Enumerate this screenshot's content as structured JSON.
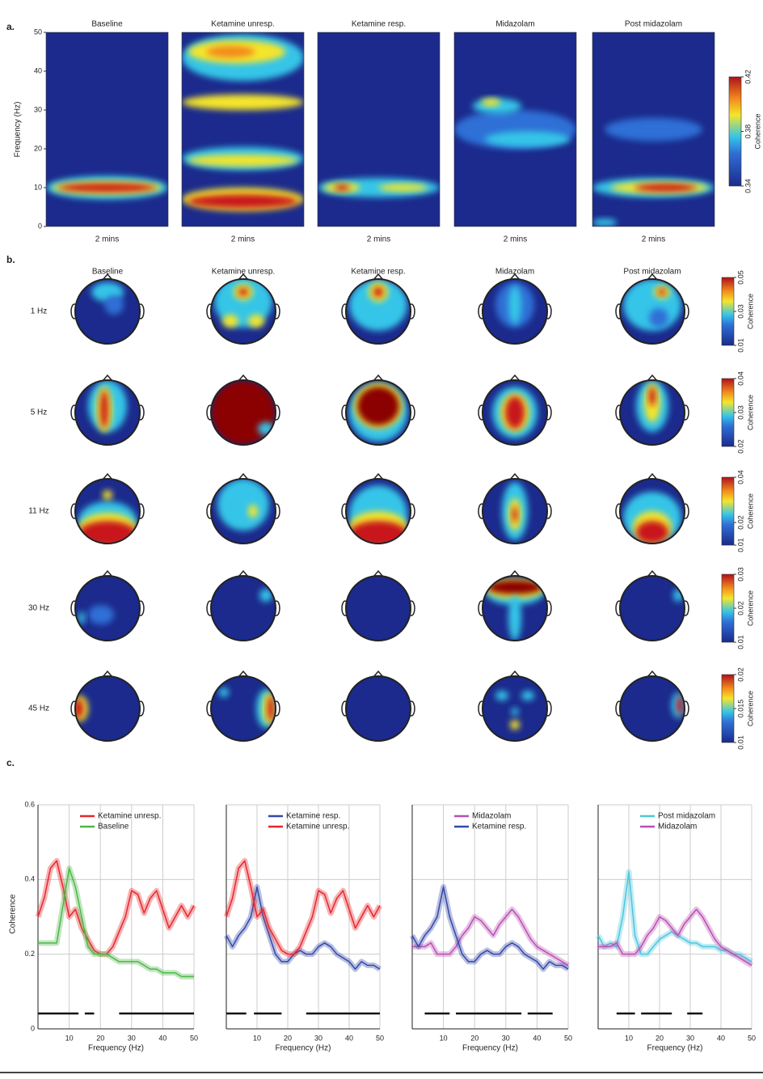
{
  "panel_labels": [
    "a.",
    "b.",
    "c."
  ],
  "spectrograms": {
    "titles": [
      "Baseline",
      "Ketamine unresp.",
      "Ketamine resp.",
      "Midazolam",
      "Post midazolam"
    ],
    "xlabel": "2 mins",
    "ylabel": "Frequency (Hz)",
    "ylim": [
      0,
      50
    ],
    "yticks": [
      0,
      10,
      20,
      30,
      40,
      50
    ],
    "colorbar": {
      "label": "Coherence",
      "lim": [
        0.34,
        0.42
      ],
      "ticks": [
        0.34,
        0.38,
        0.42
      ]
    }
  },
  "topoplots": {
    "titles": [
      "Baseline",
      "Ketamine unresp.",
      "Ketamine resp.",
      "Midazolam",
      "Post midazolam"
    ],
    "rows": [
      {
        "label": "1 Hz",
        "colorbar": {
          "label": "Coherence",
          "lim": [
            0.01,
            0.05
          ],
          "ticks": [
            0.01,
            0.03,
            0.05
          ]
        }
      },
      {
        "label": "5 Hz",
        "colorbar": {
          "label": "Coherence",
          "lim": [
            0.02,
            0.04
          ],
          "ticks": [
            0.02,
            0.03,
            0.04
          ]
        }
      },
      {
        "label": "11 Hz",
        "colorbar": {
          "label": "Coherence",
          "lim": [
            0.01,
            0.04
          ],
          "ticks": [
            0.01,
            0.02,
            0.04
          ]
        }
      },
      {
        "label": "30 Hz",
        "colorbar": {
          "label": "Coherence",
          "lim": [
            0.01,
            0.03
          ],
          "ticks": [
            0.01,
            0.02,
            0.03
          ]
        }
      },
      {
        "label": "45 Hz",
        "colorbar": {
          "label": "Coherence",
          "lim": [
            0.01,
            0.02
          ],
          "ticks": [
            0.01,
            0.015,
            0.02
          ]
        }
      }
    ]
  },
  "chart_data": [
    {
      "type": "line",
      "xlabel": "Frequency (Hz)",
      "ylabel": "Coherence",
      "x": [
        0,
        2,
        4,
        6,
        8,
        10,
        12,
        14,
        16,
        18,
        20,
        22,
        24,
        26,
        28,
        30,
        32,
        34,
        36,
        38,
        40,
        42,
        44,
        46,
        48,
        50
      ],
      "xlim": [
        0,
        50
      ],
      "xticks": [
        10,
        20,
        30,
        40,
        50
      ],
      "ylim": [
        0,
        0.6
      ],
      "yticks": [
        0,
        0.2,
        0.4,
        0.6
      ],
      "show_ytick_labels": true,
      "grid": true,
      "series": [
        {
          "name": "Ketamine unresp.",
          "color": "#e8262b",
          "values": [
            0.3,
            0.35,
            0.43,
            0.45,
            0.38,
            0.3,
            0.32,
            0.27,
            0.24,
            0.21,
            0.2,
            0.2,
            0.22,
            0.26,
            0.3,
            0.37,
            0.36,
            0.31,
            0.35,
            0.37,
            0.32,
            0.27,
            0.3,
            0.33,
            0.3,
            0.33
          ]
        },
        {
          "name": "Baseline",
          "color": "#4db848",
          "values": [
            0.23,
            0.23,
            0.23,
            0.23,
            0.33,
            0.43,
            0.38,
            0.3,
            0.22,
            0.2,
            0.2,
            0.2,
            0.19,
            0.18,
            0.18,
            0.18,
            0.18,
            0.17,
            0.16,
            0.16,
            0.15,
            0.15,
            0.15,
            0.14,
            0.14,
            0.14
          ]
        }
      ],
      "significance": [
        [
          0,
          13
        ],
        [
          15,
          18
        ],
        [
          26,
          50
        ]
      ]
    },
    {
      "type": "line",
      "xlabel": "Frequency (Hz)",
      "x": [
        0,
        2,
        4,
        6,
        8,
        10,
        12,
        14,
        16,
        18,
        20,
        22,
        24,
        26,
        28,
        30,
        32,
        34,
        36,
        38,
        40,
        42,
        44,
        46,
        48,
        50
      ],
      "xlim": [
        0,
        50
      ],
      "xticks": [
        10,
        20,
        30,
        40,
        50
      ],
      "ylim": [
        0,
        0.6
      ],
      "yticks": [
        0,
        0.2,
        0.4,
        0.6
      ],
      "show_ytick_labels": false,
      "grid": true,
      "series": [
        {
          "name": "Ketamine resp.",
          "color": "#3548a8",
          "values": [
            0.25,
            0.22,
            0.25,
            0.27,
            0.3,
            0.38,
            0.3,
            0.25,
            0.2,
            0.18,
            0.18,
            0.2,
            0.21,
            0.2,
            0.2,
            0.22,
            0.23,
            0.22,
            0.2,
            0.19,
            0.18,
            0.16,
            0.18,
            0.17,
            0.17,
            0.16
          ]
        },
        {
          "name": "Ketamine unresp.",
          "color": "#e8262b",
          "values": [
            0.3,
            0.35,
            0.43,
            0.45,
            0.38,
            0.3,
            0.32,
            0.27,
            0.24,
            0.21,
            0.2,
            0.2,
            0.22,
            0.26,
            0.3,
            0.37,
            0.36,
            0.31,
            0.35,
            0.37,
            0.32,
            0.27,
            0.3,
            0.33,
            0.3,
            0.33
          ]
        }
      ],
      "significance": [
        [
          0,
          6.5
        ],
        [
          9,
          18
        ],
        [
          26,
          50
        ]
      ]
    },
    {
      "type": "line",
      "xlabel": "Frequency (Hz)",
      "x": [
        0,
        2,
        4,
        6,
        8,
        10,
        12,
        14,
        16,
        18,
        20,
        22,
        24,
        26,
        28,
        30,
        32,
        34,
        36,
        38,
        40,
        42,
        44,
        46,
        48,
        50
      ],
      "xlim": [
        0,
        50
      ],
      "xticks": [
        10,
        20,
        30,
        40,
        50
      ],
      "ylim": [
        0,
        0.6
      ],
      "yticks": [
        0,
        0.2,
        0.4,
        0.6
      ],
      "show_ytick_labels": false,
      "grid": true,
      "series": [
        {
          "name": "Midazolam",
          "color": "#b94fb4",
          "values": [
            0.22,
            0.22,
            0.22,
            0.23,
            0.2,
            0.2,
            0.2,
            0.22,
            0.25,
            0.27,
            0.3,
            0.29,
            0.27,
            0.25,
            0.28,
            0.3,
            0.32,
            0.3,
            0.27,
            0.24,
            0.22,
            0.21,
            0.2,
            0.19,
            0.18,
            0.17
          ]
        },
        {
          "name": "Ketamine resp.",
          "color": "#3548a8",
          "values": [
            0.25,
            0.22,
            0.25,
            0.27,
            0.3,
            0.38,
            0.3,
            0.25,
            0.2,
            0.18,
            0.18,
            0.2,
            0.21,
            0.2,
            0.2,
            0.22,
            0.23,
            0.22,
            0.2,
            0.19,
            0.18,
            0.16,
            0.18,
            0.17,
            0.17,
            0.16
          ]
        }
      ],
      "significance": [
        [
          4,
          12
        ],
        [
          14,
          35
        ],
        [
          37,
          45
        ]
      ]
    },
    {
      "type": "line",
      "xlabel": "Frequency (Hz)",
      "x": [
        0,
        2,
        4,
        6,
        8,
        10,
        12,
        14,
        16,
        18,
        20,
        22,
        24,
        26,
        28,
        30,
        32,
        34,
        36,
        38,
        40,
        42,
        44,
        46,
        48,
        50
      ],
      "xlim": [
        0,
        50
      ],
      "xticks": [
        10,
        20,
        30,
        40,
        50
      ],
      "ylim": [
        0,
        0.6
      ],
      "yticks": [
        0,
        0.2,
        0.4,
        0.6
      ],
      "show_ytick_labels": false,
      "grid": true,
      "series": [
        {
          "name": "Post midazolam",
          "color": "#4cc7dc",
          "values": [
            0.25,
            0.22,
            0.23,
            0.22,
            0.3,
            0.42,
            0.25,
            0.2,
            0.2,
            0.22,
            0.24,
            0.25,
            0.26,
            0.25,
            0.24,
            0.23,
            0.23,
            0.22,
            0.22,
            0.22,
            0.21,
            0.21,
            0.2,
            0.2,
            0.19,
            0.18
          ]
        },
        {
          "name": "Midazolam",
          "color": "#b94fb4",
          "values": [
            0.22,
            0.22,
            0.22,
            0.23,
            0.2,
            0.2,
            0.2,
            0.22,
            0.25,
            0.27,
            0.3,
            0.29,
            0.27,
            0.25,
            0.28,
            0.3,
            0.32,
            0.3,
            0.27,
            0.24,
            0.22,
            0.21,
            0.2,
            0.19,
            0.18,
            0.17
          ]
        }
      ],
      "significance": [
        [
          6,
          12
        ],
        [
          14,
          24
        ],
        [
          29,
          34
        ]
      ]
    }
  ]
}
